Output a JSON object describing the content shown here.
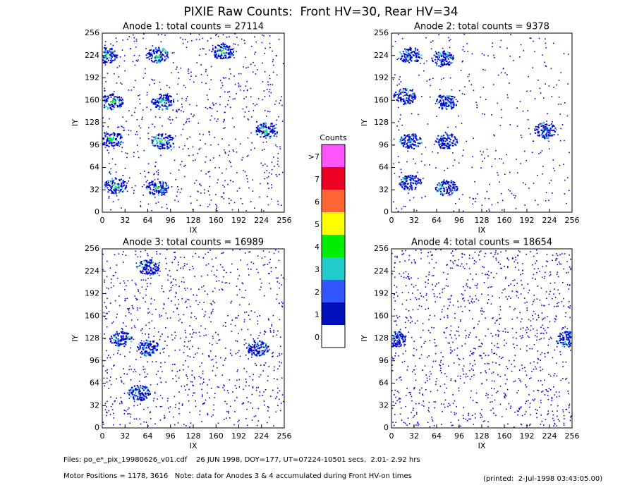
{
  "title": "PIXIE Raw Counts:  Front HV=30, Rear HV=34",
  "chart_data": [
    {
      "type": "heatmap",
      "title": "Anode 1: total counts = 27114",
      "xlabel": "IX",
      "ylabel": "IY",
      "xlim": [
        0,
        256
      ],
      "ylim": [
        0,
        256
      ],
      "xticks": [
        0,
        32,
        64,
        96,
        128,
        160,
        192,
        224,
        256
      ],
      "yticks": [
        0,
        32,
        64,
        96,
        128,
        160,
        192,
        224,
        256
      ]
    },
    {
      "type": "heatmap",
      "title": "Anode 2: total counts = 9378",
      "xlabel": "IX",
      "ylabel": "IY",
      "xlim": [
        0,
        256
      ],
      "ylim": [
        0,
        256
      ],
      "xticks": [
        0,
        32,
        64,
        96,
        128,
        160,
        192,
        224,
        256
      ],
      "yticks": [
        0,
        32,
        64,
        96,
        128,
        160,
        192,
        224,
        256
      ]
    },
    {
      "type": "heatmap",
      "title": "Anode 3: total counts = 16989",
      "xlabel": "IX",
      "ylabel": "IY",
      "xlim": [
        0,
        256
      ],
      "ylim": [
        0,
        256
      ],
      "xticks": [
        0,
        32,
        64,
        96,
        128,
        160,
        192,
        224,
        256
      ],
      "yticks": [
        0,
        32,
        64,
        96,
        128,
        160,
        192,
        224,
        256
      ]
    },
    {
      "type": "heatmap",
      "title": "Anode 4: total counts = 18654",
      "xlabel": "IX",
      "ylabel": "IY",
      "xlim": [
        0,
        256
      ],
      "ylim": [
        0,
        256
      ],
      "xticks": [
        0,
        32,
        64,
        96,
        128,
        160,
        192,
        224,
        256
      ],
      "yticks": [
        0,
        32,
        64,
        96,
        128,
        160,
        192,
        224,
        256
      ]
    }
  ],
  "colorbar": {
    "title": "Counts",
    "labels": [
      ">7",
      "7",
      "6",
      "5",
      "4",
      "3",
      "2",
      "1",
      "0"
    ],
    "colors": [
      "#ff55ff",
      "#ee0022",
      "#ff6633",
      "#ffff00",
      "#00ee00",
      "#22cccc",
      "#3355ff",
      "#0011bb",
      "#ffffff"
    ]
  },
  "footer": {
    "files": "Files: po_e*_pix_19980626_v01.cdf    26 JUN 1998, DOY=177, UT=07224-10501 secs,  2.01- 2.92 hrs",
    "motor": "Motor Positions = 1178, 3616   Note: data for Anodes 3 & 4 accumulated during Front HV-on times",
    "printed": "(printed:  2-Jul-1998 03:43:05.00)"
  }
}
